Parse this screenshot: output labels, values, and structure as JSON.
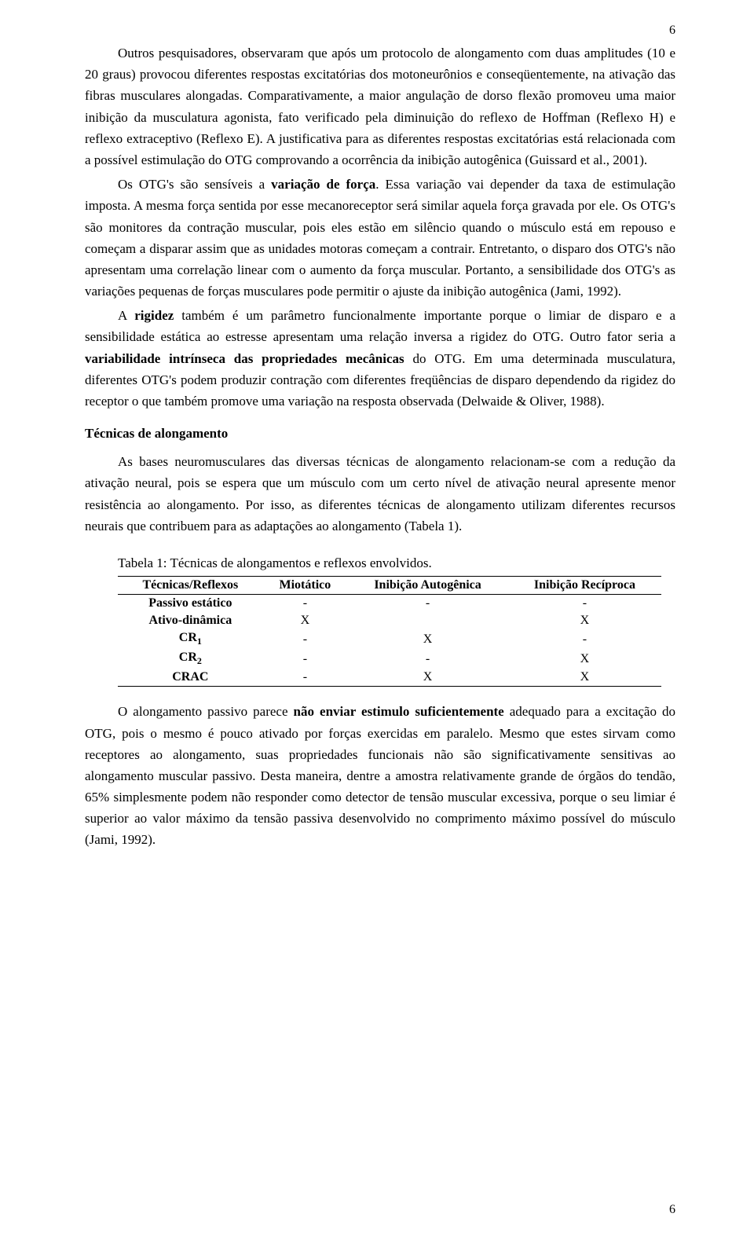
{
  "page_number_top": "6",
  "page_number_bottom": "6",
  "paragraphs": {
    "p1_pre": "Outros pesquisadores, observaram que após um protocolo de alongamento com duas amplitudes (10 e 20 graus) provocou diferentes respostas excitatórias dos motoneurônios e conseqüentemente, na ativação das fibras musculares alongadas. Comparativamente, a maior angulação de dorso flexão promoveu uma maior inibição da musculatura agonista, fato verificado pela diminuição do reflexo de Hoffman (Reflexo H) e reflexo extraceptivo (Reflexo E). A justificativa para as diferentes respostas excitatórias está relacionada com a possível estimulação do OTG comprovando a ocorrência da inibição autogênica (Guissard et al., 2001).",
    "p2_a": "Os OTG's são sensíveis a ",
    "p2_b_bold": "variação de força",
    "p2_c": ". Essa variação vai depender da taxa de estimulação imposta. A mesma força sentida por esse mecanoreceptor será similar aquela força gravada por ele. Os OTG's são monitores da contração muscular, pois eles estão em silêncio quando o músculo está em repouso e começam a disparar assim que as unidades motoras começam a contrair. Entretanto, o disparo dos OTG's não apresentam uma correlação linear com o aumento da força muscular. Portanto, a sensibilidade dos OTG's as variações pequenas de forças musculares pode permitir o ajuste da inibição autogênica (Jami, 1992).",
    "p3_a": "A ",
    "p3_b_bold": "rigidez",
    "p3_c": " também é um parâmetro funcionalmente importante porque o limiar de disparo e a sensibilidade estática ao estresse apresentam uma relação inversa a rigidez do OTG. Outro fator seria a ",
    "p3_d_bold": "variabilidade intrínseca das propriedades mecânicas",
    "p3_e": " do OTG. Em uma determinada musculatura, diferentes OTG's podem produzir contração com diferentes freqüências de disparo dependendo da rigidez do receptor o que também promove uma variação na resposta observada (Delwaide & Oliver, 1988).",
    "heading": "Técnicas de alongamento",
    "p4": "As bases neuromusculares das diversas técnicas de alongamento relacionam-se com a redução da ativação neural, pois se espera que um músculo com um certo nível de ativação neural apresente menor resistência ao alongamento. Por isso, as diferentes técnicas de alongamento utilizam diferentes recursos neurais que contribuem para as adaptações ao alongamento (Tabela 1).",
    "table_caption": "Tabela 1: Técnicas de alongamentos e reflexos envolvidos.",
    "p5_a": "O alongamento passivo parece ",
    "p5_b_bold": "não enviar estimulo suficientemente",
    "p5_c": " adequado para a excitação do OTG, pois o mesmo é pouco ativado por forças exercidas em paralelo. Mesmo que estes sirvam como receptores ao alongamento, suas propriedades funcionais não são significativamente sensitivas ao alongamento muscular passivo. Desta maneira, dentre a amostra relativamente grande de órgãos do tendão, 65% simplesmente podem não responder como detector de tensão muscular excessiva, porque o seu limiar é superior ao valor máximo da tensão passiva desenvolvido no comprimento máximo possível do músculo (Jami, 1992)."
  },
  "table": {
    "columns": [
      "Técnicas/Reflexos",
      "Miotático",
      "Inibição Autogênica",
      "Inibição Recíproca"
    ],
    "rows": [
      {
        "label": "Passivo estático",
        "cells": [
          "-",
          "-",
          "-"
        ]
      },
      {
        "label": "Ativo-dinâmica",
        "cells": [
          "X",
          "",
          "X"
        ]
      },
      {
        "label_html": "CR<span class=\"sub\">1</span>",
        "cells": [
          "-",
          "X",
          "-"
        ]
      },
      {
        "label_html": "CR<span class=\"sub\">2</span>",
        "cells": [
          "-",
          "-",
          "X"
        ]
      },
      {
        "label": "CRAC",
        "cells": [
          "-",
          "X",
          "X"
        ]
      }
    ]
  }
}
